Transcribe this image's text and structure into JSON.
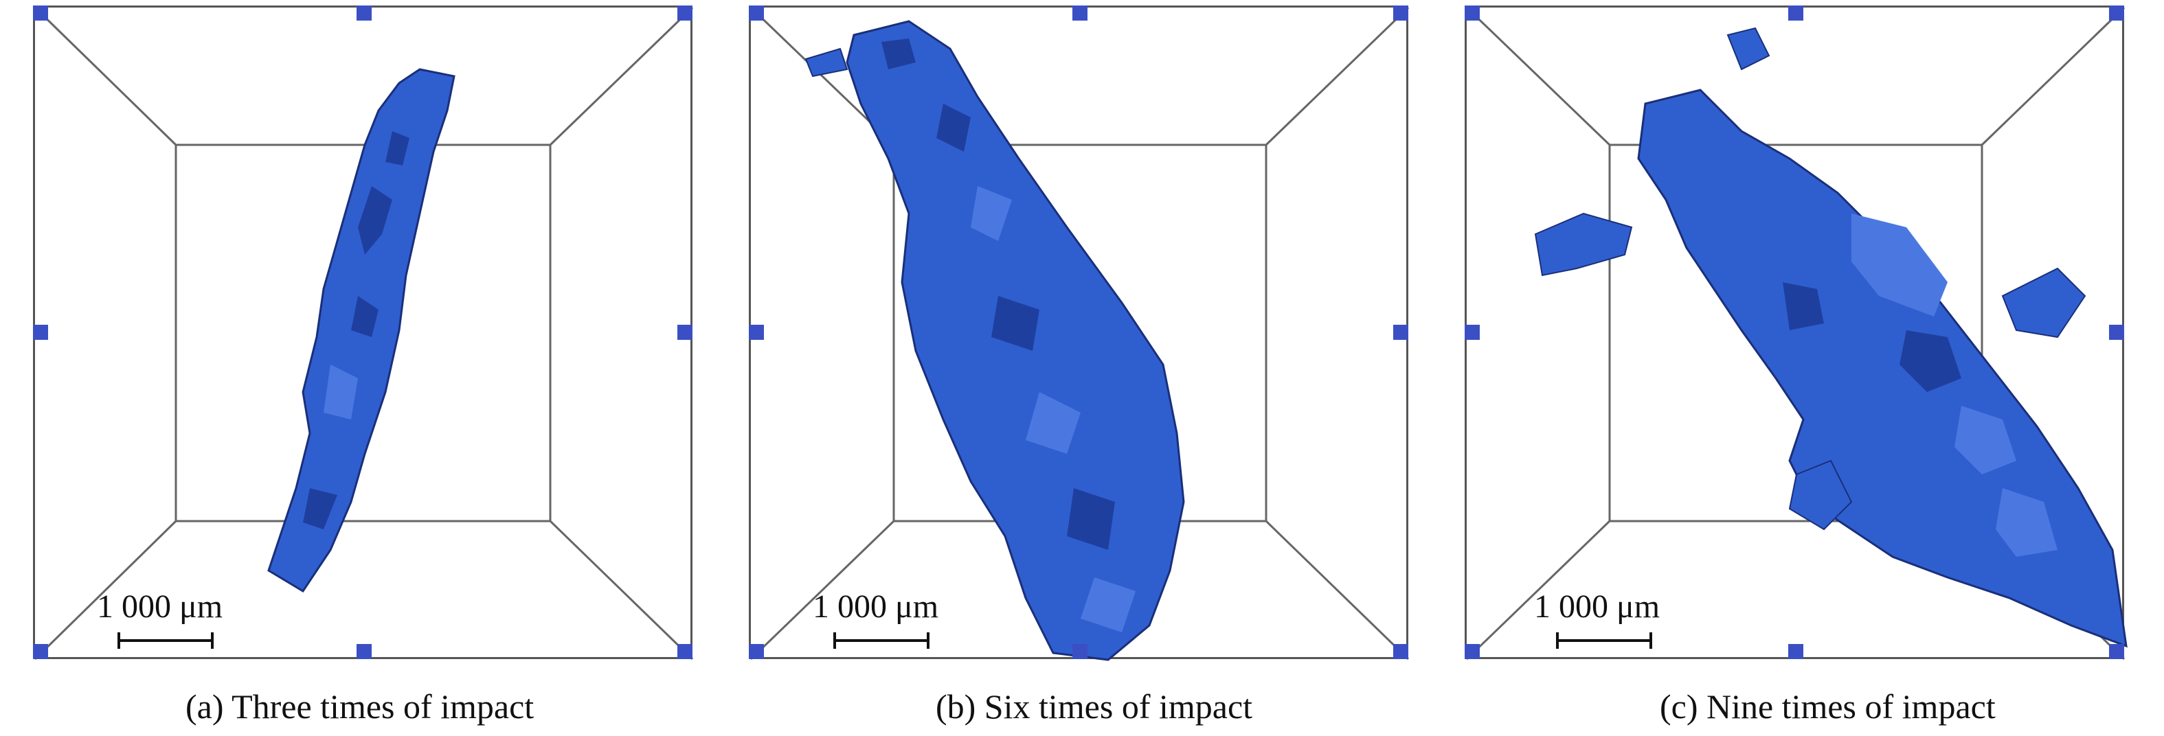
{
  "panels": [
    {
      "scale_label": "1 000 μm",
      "caption": "(a) Three times of impact"
    },
    {
      "scale_label": "1 000 μm",
      "caption": "(b) Six times of impact"
    },
    {
      "scale_label": "1 000 μm",
      "caption": "(c) Nine times of impact"
    }
  ],
  "colors": {
    "crack_fill": "#2f5fcf",
    "crack_dark": "#1a2f7a",
    "handle": "#3b4fc4",
    "frame": "#555555"
  }
}
